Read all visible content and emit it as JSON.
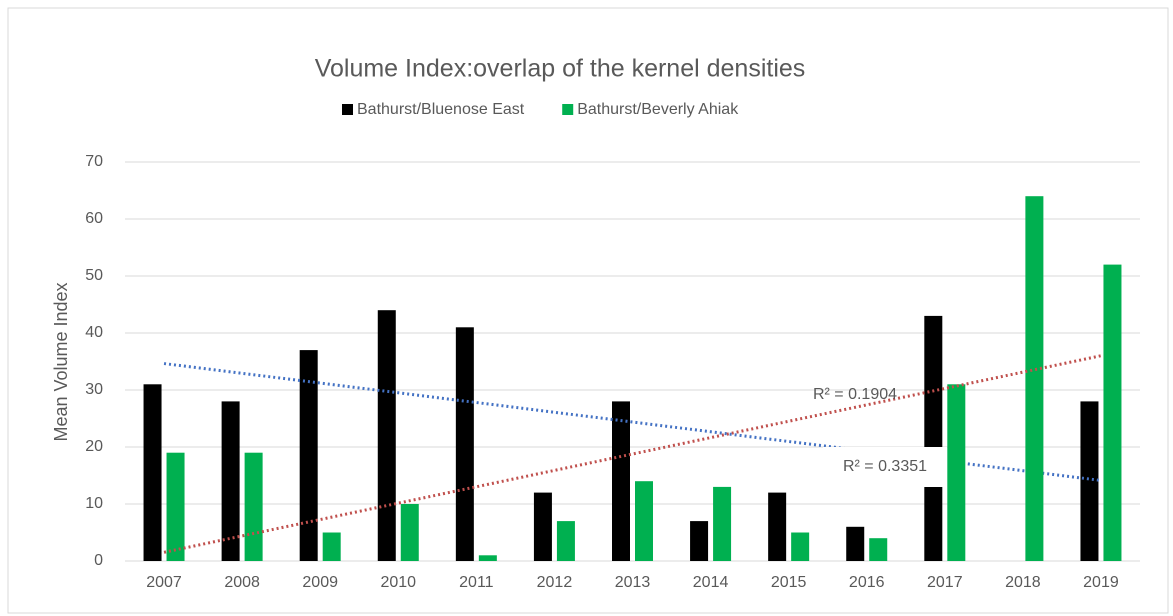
{
  "chart_data": {
    "type": "bar",
    "title": "Volume Index:overlap of the kernel densities",
    "y_label": "Mean Volume Index",
    "categories": [
      "2007",
      "2008",
      "2009",
      "2010",
      "2011",
      "2012",
      "2013",
      "2014",
      "2015",
      "2016",
      "2017",
      "2018",
      "2019"
    ],
    "series": [
      {
        "name": "Bathurst/Bluenose East",
        "color": "#000000",
        "trend_color": "#4472c4",
        "values": [
          31,
          28,
          37,
          44,
          41,
          12,
          28,
          7,
          12,
          6,
          43,
          0,
          28
        ]
      },
      {
        "name": "Bathurst/Beverly Ahiak",
        "color": "#00b050",
        "trend_color": "#c0504d",
        "values": [
          19,
          19,
          5,
          10,
          1,
          7,
          14,
          13,
          5,
          4,
          31,
          64,
          52
        ]
      }
    ],
    "annotations": [
      "R² = 0.1904",
      "R² = 0.3351"
    ],
    "ylim": [
      0,
      70
    ],
    "yticks": [
      0,
      10,
      20,
      30,
      40,
      50,
      60,
      70
    ],
    "grid": true,
    "legend": "top"
  }
}
